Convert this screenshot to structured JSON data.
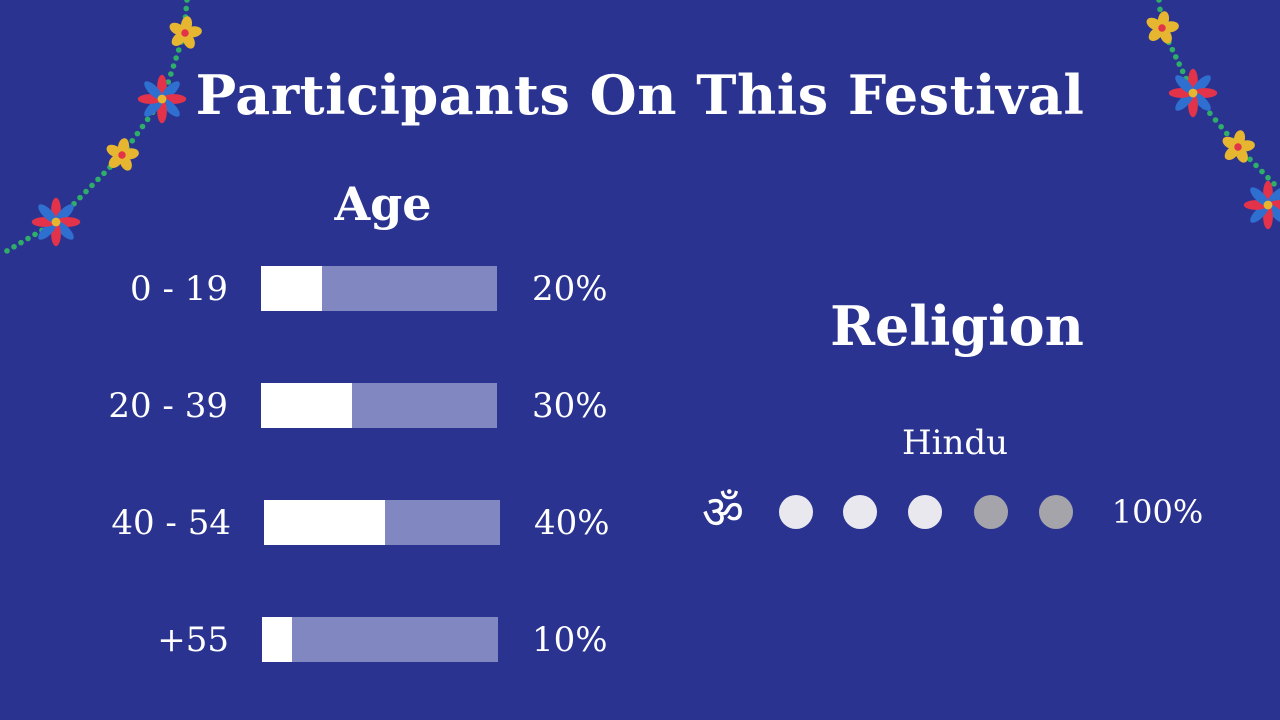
{
  "title": "Participants On This Festival",
  "chart_data": [
    {
      "type": "bar",
      "title": "Age",
      "orientation": "horizontal",
      "ylim": [
        0,
        100
      ],
      "categories": [
        "0 - 19",
        "20 - 39",
        "40 - 54",
        "+55"
      ],
      "values": [
        20,
        30,
        40,
        10
      ],
      "value_labels": [
        "20%",
        "30%",
        "40%",
        "10%"
      ]
    },
    {
      "type": "pictograph",
      "title": "Religion",
      "categories": [
        "Hindu"
      ],
      "values": [
        100
      ],
      "value_labels": [
        "100%"
      ],
      "icon": "om-icon",
      "dot_levels": [
        "filled",
        "filled",
        "filled",
        "dim",
        "dim"
      ]
    }
  ],
  "colors": {
    "background": "#2a3490",
    "bar_track": "#8188c1",
    "bar_fill": "#ffffff",
    "dot_filled": "#e8e8ee",
    "dot_dim": "#a4a4aa",
    "garland_string": "#2fae6a",
    "flower_red": "#e2334a",
    "flower_blue": "#2f6fd0",
    "flower_yellow": "#e7b630"
  }
}
